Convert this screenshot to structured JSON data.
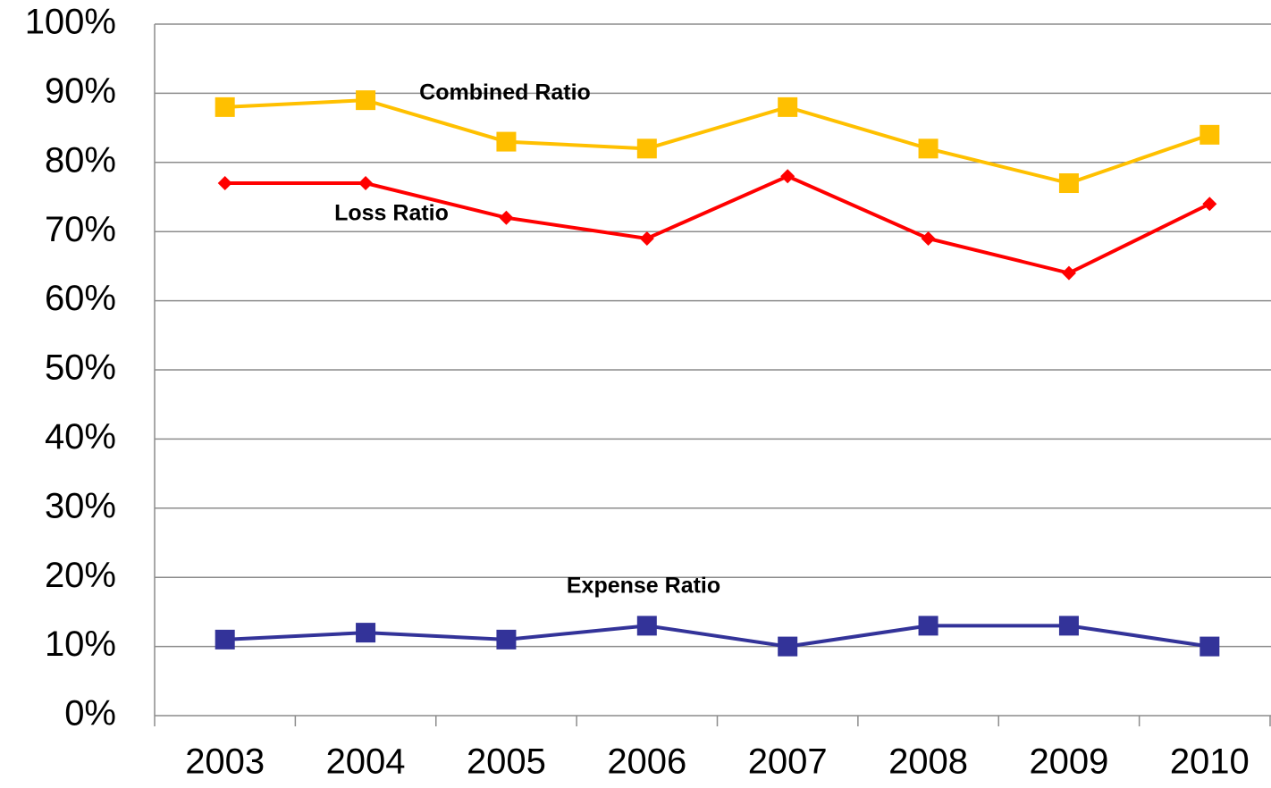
{
  "chart_data": {
    "type": "line",
    "categories": [
      "2003",
      "2004",
      "2005",
      "2006",
      "2007",
      "2008",
      "2009",
      "2010"
    ],
    "series": [
      {
        "name": "Combined Ratio",
        "color": "#FFC000",
        "marker": "square",
        "values": [
          88,
          89,
          83,
          82,
          88,
          82,
          77,
          84
        ]
      },
      {
        "name": "Loss Ratio",
        "color": "#FF0000",
        "marker": "diamond",
        "values": [
          77,
          77,
          72,
          69,
          78,
          69,
          64,
          74
        ]
      },
      {
        "name": "Expense Ratio",
        "color": "#333399",
        "marker": "square",
        "values": [
          11,
          12,
          11,
          13,
          10,
          13,
          13,
          10
        ]
      }
    ],
    "ylim": [
      0,
      100
    ],
    "yticks": [
      {
        "value": 0,
        "label": "0%"
      },
      {
        "value": 10,
        "label": "10%"
      },
      {
        "value": 20,
        "label": "20%"
      },
      {
        "value": 30,
        "label": "30%"
      },
      {
        "value": 40,
        "label": "40%"
      },
      {
        "value": 50,
        "label": "50%"
      },
      {
        "value": 60,
        "label": "60%"
      },
      {
        "value": 70,
        "label": "70%"
      },
      {
        "value": 80,
        "label": "80%"
      },
      {
        "value": 90,
        "label": "90%"
      },
      {
        "value": 100,
        "label": "100%"
      }
    ],
    "grid": true
  }
}
